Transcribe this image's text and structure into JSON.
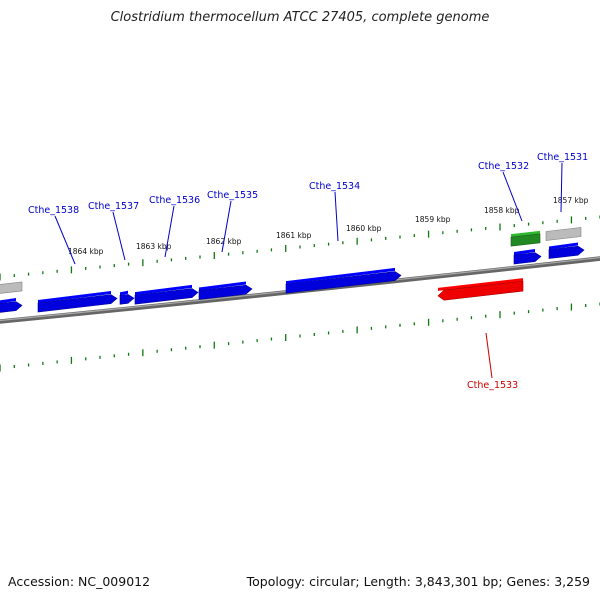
{
  "title": "Clostridium thermocellum ATCC 27405, complete genome",
  "footer": {
    "accession": "Accession: NC_009012",
    "summary": "Topology: circular; Length: 3,843,301 bp; Genes: 3,259"
  },
  "colors": {
    "forward_gene": "#0000dd",
    "reverse_gene": "#ee0000",
    "rna_gene": "#228822",
    "pseudo_gene": "#bbbbbb",
    "backbone": "#888888",
    "tick": "#117711",
    "forward_label": "#0000cc",
    "reverse_label": "#cc0000"
  },
  "ruler": {
    "labels": [
      "1864 kbp",
      "1863 kbp",
      "1862 kbp",
      "1861 kbp",
      "1860 kbp",
      "1859 kbp",
      "1858 kbp",
      "1857 kbp"
    ]
  },
  "genes": [
    {
      "name": "Cthe_1538",
      "strand": "forward"
    },
    {
      "name": "Cthe_1537",
      "strand": "forward"
    },
    {
      "name": "Cthe_1536",
      "strand": "forward"
    },
    {
      "name": "Cthe_1535",
      "strand": "forward"
    },
    {
      "name": "Cthe_1534",
      "strand": "forward"
    },
    {
      "name": "Cthe_1533",
      "strand": "reverse"
    },
    {
      "name": "Cthe_1532",
      "strand": "forward"
    },
    {
      "name": "Cthe_1531",
      "strand": "forward"
    }
  ]
}
